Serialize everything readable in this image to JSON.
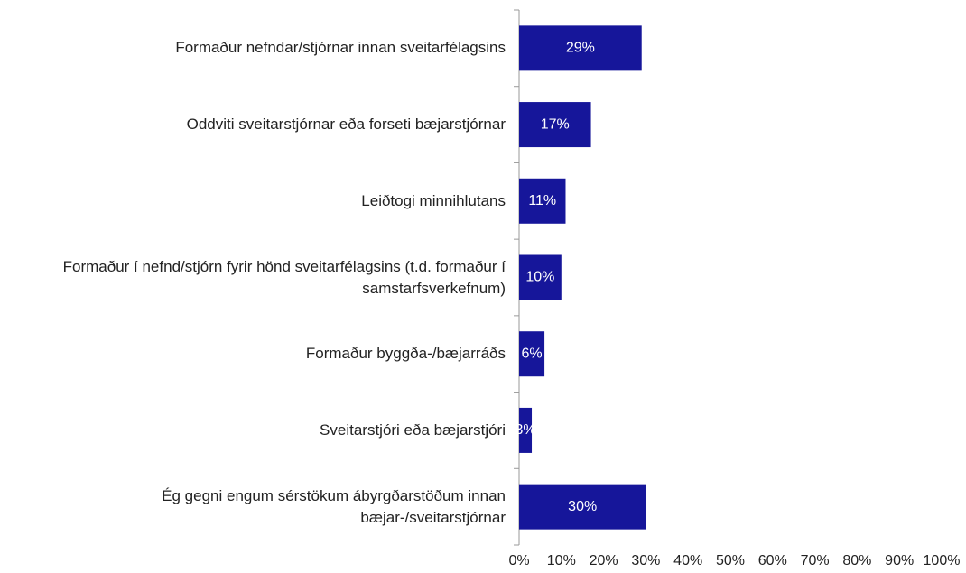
{
  "chart_data": {
    "type": "barh",
    "categories": [
      "Formaður nefndar/stjórnar innan sveitarfélagsins",
      "Oddviti sveitarstjórnar eða forseti bæjarstjórnar",
      "Leiðtogi minnihlutans",
      "Formaður í nefnd/stjórn fyrir hönd sveitarfélagsins (t.d. formaður í samstarfsverkefnum)",
      "Formaður byggða-/bæjarráðs",
      "Sveitarstjóri eða bæjarstjóri",
      "Ég gegni engum sérstökum ábyrgðarstöðum innan bæjar-/sveitarstjórnar"
    ],
    "values": [
      29,
      17,
      11,
      10,
      6,
      3,
      30
    ],
    "value_labels": [
      "29%",
      "17%",
      "11%",
      "10%",
      "6%",
      "3%",
      "30%"
    ],
    "color": "#16169a",
    "xlim": [
      0,
      100
    ],
    "xticks": [
      {
        "value": 0,
        "label": "0%"
      },
      {
        "value": 10,
        "label": "10%"
      },
      {
        "value": 20,
        "label": "20%"
      },
      {
        "value": 30,
        "label": "30%"
      },
      {
        "value": 40,
        "label": "40%"
      },
      {
        "value": 50,
        "label": "50%"
      },
      {
        "value": 60,
        "label": "60%"
      },
      {
        "value": 70,
        "label": "70%"
      },
      {
        "value": 80,
        "label": "80%"
      },
      {
        "value": 90,
        "label": "90%"
      },
      {
        "value": 100,
        "label": "100%"
      }
    ]
  }
}
